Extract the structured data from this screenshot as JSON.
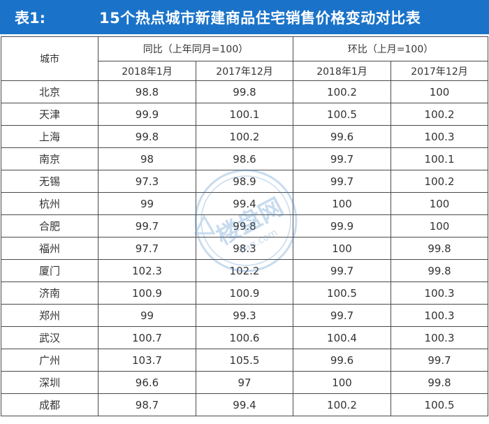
{
  "title": {
    "label": "表1:",
    "text": "15个热点城市新建商品住宅销售价格变动对比表"
  },
  "table": {
    "city_header": "城市",
    "group_headers": [
      "同比（上年同月=100）",
      "环比（上月=100）"
    ],
    "period_headers": [
      "2018年1月",
      "2017年12月",
      "2018年1月",
      "2017年12月"
    ],
    "rows": [
      {
        "city": "北京",
        "values": [
          "98.8",
          "99.8",
          "100.2",
          "100"
        ]
      },
      {
        "city": "天津",
        "values": [
          "99.9",
          "100.1",
          "100.5",
          "100.2"
        ]
      },
      {
        "city": "上海",
        "values": [
          "99.8",
          "100.2",
          "99.6",
          "100.3"
        ]
      },
      {
        "city": "南京",
        "values": [
          "98",
          "98.6",
          "99.7",
          "100.1"
        ]
      },
      {
        "city": "无锡",
        "values": [
          "97.3",
          "98.9",
          "99.7",
          "100.2"
        ]
      },
      {
        "city": "杭州",
        "values": [
          "99",
          "99.4",
          "100",
          "100"
        ]
      },
      {
        "city": "合肥",
        "values": [
          "99.7",
          "99.8",
          "99.9",
          "100"
        ]
      },
      {
        "city": "福州",
        "values": [
          "97.7",
          "98.3",
          "100",
          "99.8"
        ]
      },
      {
        "city": "厦门",
        "values": [
          "102.3",
          "102.2",
          "99.7",
          "99.8"
        ]
      },
      {
        "city": "济南",
        "values": [
          "100.9",
          "100.9",
          "100.5",
          "100.3"
        ]
      },
      {
        "city": "郑州",
        "values": [
          "99",
          "99.3",
          "99.7",
          "100.3"
        ]
      },
      {
        "city": "武汉",
        "values": [
          "100.7",
          "100.6",
          "100.4",
          "100.3"
        ]
      },
      {
        "city": "广州",
        "values": [
          "103.7",
          "105.5",
          "99.6",
          "99.7"
        ]
      },
      {
        "city": "深圳",
        "values": [
          "96.6",
          "97",
          "100",
          "99.8"
        ]
      },
      {
        "city": "成都",
        "values": [
          "98.7",
          "99.4",
          "100.2",
          "100.5"
        ]
      }
    ]
  },
  "watermark": {
    "brand": "楼盘网",
    "domain": "Pan.com",
    "color": "#3d7fc4"
  },
  "colors": {
    "title_bg": "#1a73c9",
    "title_fg": "#ffffff",
    "grid_line": "#4a4a4a"
  }
}
